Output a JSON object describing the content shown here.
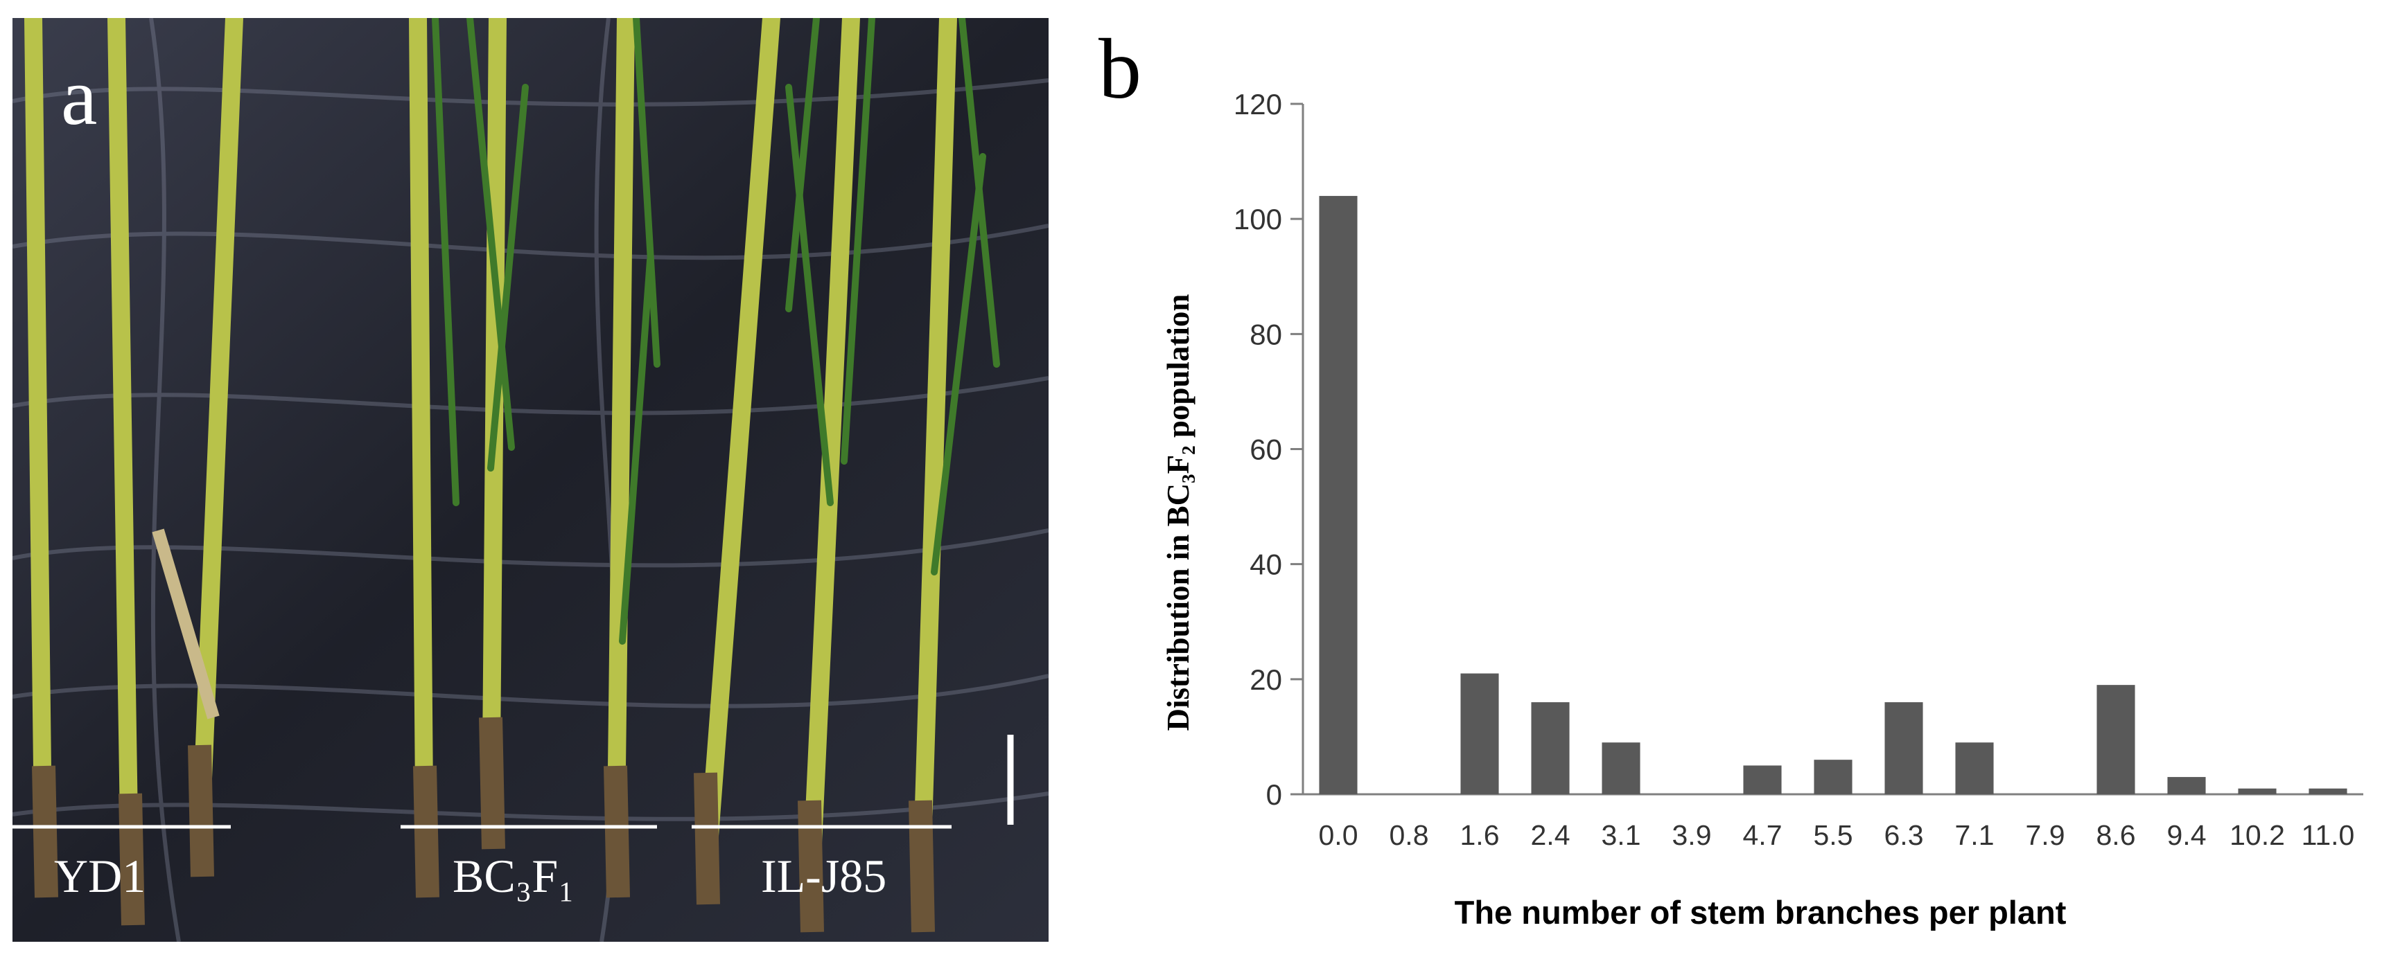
{
  "panels": {
    "photo": {
      "letter": "a",
      "groups": [
        "YD1",
        "BC₃F₁",
        "IL-J85"
      ]
    },
    "chart": {
      "letter": "b"
    }
  },
  "colors": {
    "background_cloth": "#20222c",
    "stem": "#b8c24a",
    "leaf": "#3f7a2a",
    "bar": "#595959",
    "axis": "#7f7f7f"
  },
  "chart_data": {
    "type": "bar",
    "categories": [
      "0.0",
      "0.8",
      "1.6",
      "2.4",
      "3.1",
      "3.9",
      "4.7",
      "5.5",
      "6.3",
      "7.1",
      "7.9",
      "8.6",
      "9.4",
      "10.2",
      "11.0"
    ],
    "values": [
      104,
      0,
      21,
      16,
      9,
      0,
      5,
      6,
      16,
      9,
      0,
      19,
      3,
      1,
      1
    ],
    "title": "",
    "xlabel": "The number of stem branches per plant",
    "ylabel": "Distribution in BC₃F₂ population",
    "ylim": [
      0,
      120
    ],
    "yticks": [
      0,
      20,
      40,
      60,
      80,
      100,
      120
    ],
    "grid": false,
    "legend": "none"
  }
}
